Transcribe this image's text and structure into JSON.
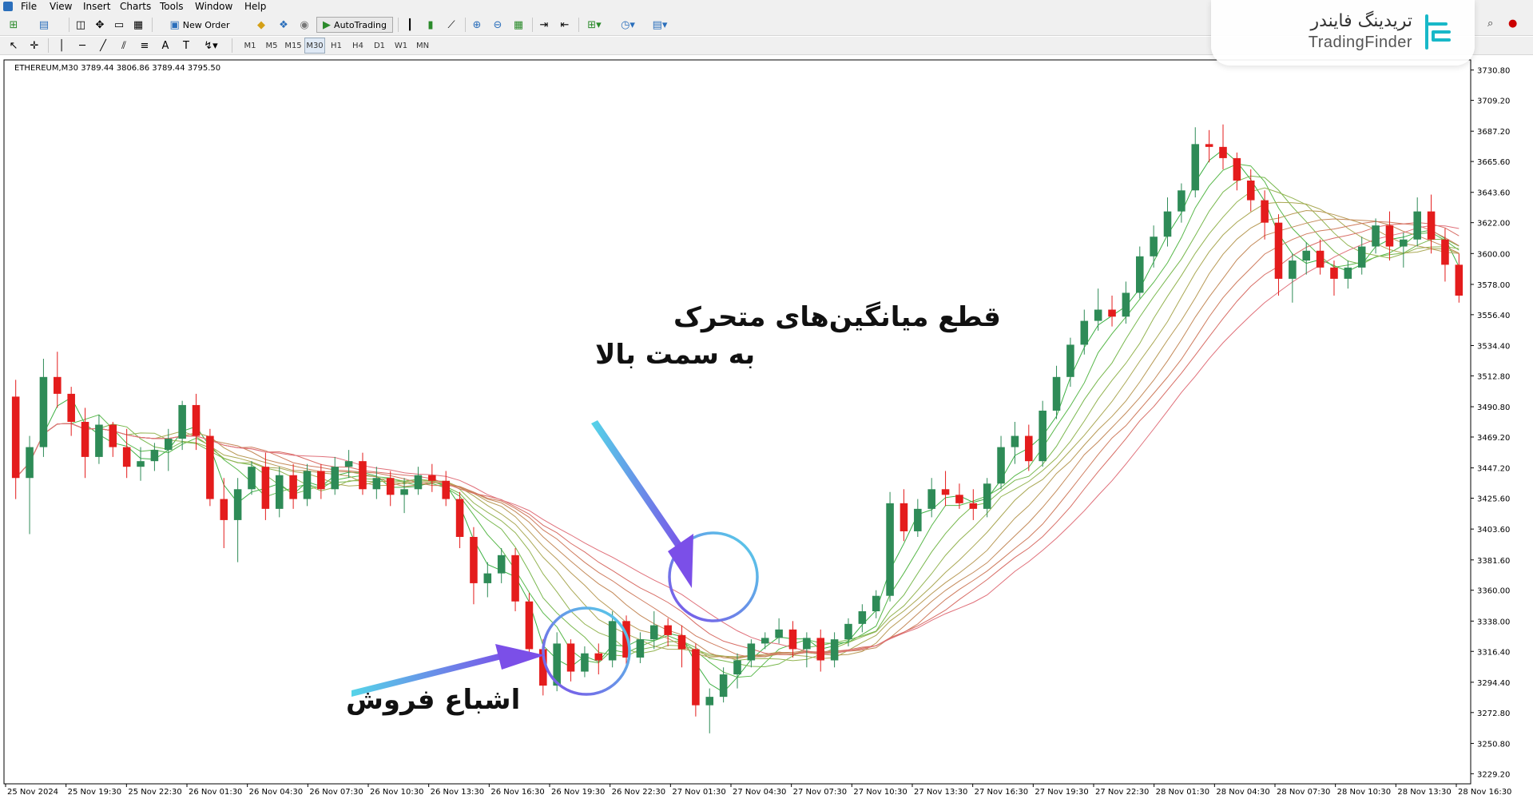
{
  "menu": {
    "items": [
      "File",
      "View",
      "Insert",
      "Charts",
      "Tools",
      "Window",
      "Help"
    ]
  },
  "toolbar": {
    "new_order_label": "New Order",
    "autotrading_label": "AutoTrading"
  },
  "timeframes": [
    "M1",
    "M5",
    "M15",
    "M30",
    "H1",
    "H4",
    "D1",
    "W1",
    "MN"
  ],
  "active_timeframe": "M30",
  "chart": {
    "symbol_info": "ETHEREUM,M30  3789.44 3806.86 3789.44 3795.50"
  },
  "brand": {
    "persian_name": "تریدینگ فایندر",
    "english_name": "TradingFinder",
    "accent_color": "#18b8c8"
  },
  "annotations": {
    "crossover_line1": "قطع میانگین‌های متحرک",
    "crossover_line2": "به سمت بالا",
    "oversold": "اشباع فروش"
  },
  "colors": {
    "bull": "#2e8b57",
    "bear": "#e41c1c",
    "circle_start": "#7b4fe8",
    "circle_end": "#55d4e8"
  },
  "chart_data": {
    "type": "candlestick",
    "title": "",
    "ylim": [
      3222,
      3738
    ],
    "y_ticks": [
      "3730.80",
      "3709.20",
      "3687.20",
      "3665.60",
      "3643.60",
      "3622.00",
      "3600.00",
      "3578.00",
      "3556.40",
      "3534.40",
      "3512.80",
      "3490.80",
      "3469.20",
      "3447.20",
      "3425.60",
      "3403.60",
      "3381.60",
      "3360.00",
      "3338.00",
      "3316.40",
      "3294.40",
      "3272.80",
      "3250.80",
      "3229.20"
    ],
    "x_ticks": [
      "25 Nov 2024",
      "25 Nov 19:30",
      "25 Nov 22:30",
      "26 Nov 01:30",
      "26 Nov 04:30",
      "26 Nov 07:30",
      "26 Nov 10:30",
      "26 Nov 13:30",
      "26 Nov 16:30",
      "26 Nov 19:30",
      "26 Nov 22:30",
      "27 Nov 01:30",
      "27 Nov 04:30",
      "27 Nov 07:30",
      "27 Nov 10:30",
      "27 Nov 13:30",
      "27 Nov 16:30",
      "27 Nov 19:30",
      "27 Nov 22:30",
      "28 Nov 01:30",
      "28 Nov 04:30",
      "28 Nov 07:30",
      "28 Nov 10:30",
      "28 Nov 13:30",
      "28 Nov 16:30"
    ],
    "ohlc": [
      [
        3498,
        3510,
        3425,
        3440
      ],
      [
        3440,
        3470,
        3400,
        3462
      ],
      [
        3462,
        3525,
        3455,
        3512
      ],
      [
        3512,
        3530,
        3490,
        3500
      ],
      [
        3500,
        3505,
        3470,
        3480
      ],
      [
        3480,
        3490,
        3440,
        3455
      ],
      [
        3455,
        3485,
        3450,
        3478
      ],
      [
        3478,
        3480,
        3455,
        3462
      ],
      [
        3462,
        3475,
        3440,
        3448
      ],
      [
        3448,
        3462,
        3438,
        3452
      ],
      [
        3452,
        3465,
        3445,
        3460
      ],
      [
        3460,
        3475,
        3445,
        3468
      ],
      [
        3468,
        3495,
        3460,
        3492
      ],
      [
        3492,
        3500,
        3460,
        3470
      ],
      [
        3470,
        3475,
        3420,
        3425
      ],
      [
        3425,
        3440,
        3390,
        3410
      ],
      [
        3410,
        3440,
        3380,
        3432
      ],
      [
        3432,
        3452,
        3428,
        3448
      ],
      [
        3448,
        3458,
        3410,
        3418
      ],
      [
        3418,
        3448,
        3412,
        3442
      ],
      [
        3442,
        3450,
        3418,
        3425
      ],
      [
        3425,
        3450,
        3420,
        3445
      ],
      [
        3445,
        3450,
        3425,
        3432
      ],
      [
        3432,
        3455,
        3428,
        3448
      ],
      [
        3448,
        3460,
        3440,
        3452
      ],
      [
        3452,
        3458,
        3428,
        3432
      ],
      [
        3432,
        3448,
        3425,
        3440
      ],
      [
        3440,
        3445,
        3420,
        3428
      ],
      [
        3428,
        3440,
        3415,
        3432
      ],
      [
        3432,
        3448,
        3428,
        3442
      ],
      [
        3442,
        3450,
        3430,
        3438
      ],
      [
        3438,
        3445,
        3420,
        3425
      ],
      [
        3425,
        3430,
        3390,
        3398
      ],
      [
        3398,
        3405,
        3350,
        3365
      ],
      [
        3365,
        3380,
        3355,
        3372
      ],
      [
        3372,
        3390,
        3365,
        3385
      ],
      [
        3385,
        3390,
        3345,
        3352
      ],
      [
        3352,
        3358,
        3310,
        3318
      ],
      [
        3318,
        3325,
        3285,
        3292
      ],
      [
        3292,
        3330,
        3288,
        3322
      ],
      [
        3322,
        3325,
        3295,
        3302
      ],
      [
        3302,
        3320,
        3298,
        3315
      ],
      [
        3315,
        3322,
        3300,
        3310
      ],
      [
        3310,
        3345,
        3305,
        3338
      ],
      [
        3338,
        3342,
        3305,
        3312
      ],
      [
        3312,
        3330,
        3308,
        3325
      ],
      [
        3325,
        3345,
        3318,
        3335
      ],
      [
        3335,
        3340,
        3320,
        3328
      ],
      [
        3328,
        3335,
        3305,
        3318
      ],
      [
        3318,
        3322,
        3270,
        3278
      ],
      [
        3278,
        3290,
        3258,
        3284
      ],
      [
        3284,
        3305,
        3280,
        3300
      ],
      [
        3300,
        3315,
        3290,
        3310
      ],
      [
        3310,
        3325,
        3305,
        3322
      ],
      [
        3322,
        3330,
        3318,
        3326
      ],
      [
        3326,
        3340,
        3322,
        3332
      ],
      [
        3332,
        3338,
        3312,
        3318
      ],
      [
        3318,
        3330,
        3305,
        3326
      ],
      [
        3326,
        3332,
        3302,
        3310
      ],
      [
        3310,
        3330,
        3305,
        3325
      ],
      [
        3325,
        3340,
        3320,
        3336
      ],
      [
        3336,
        3350,
        3330,
        3345
      ],
      [
        3345,
        3360,
        3340,
        3356
      ],
      [
        3356,
        3430,
        3352,
        3422
      ],
      [
        3422,
        3432,
        3395,
        3402
      ],
      [
        3402,
        3425,
        3398,
        3418
      ],
      [
        3418,
        3440,
        3412,
        3432
      ],
      [
        3432,
        3445,
        3420,
        3428
      ],
      [
        3428,
        3436,
        3418,
        3422
      ],
      [
        3422,
        3432,
        3410,
        3418
      ],
      [
        3418,
        3440,
        3412,
        3436
      ],
      [
        3436,
        3470,
        3432,
        3462
      ],
      [
        3462,
        3480,
        3450,
        3470
      ],
      [
        3470,
        3478,
        3445,
        3452
      ],
      [
        3452,
        3495,
        3448,
        3488
      ],
      [
        3488,
        3520,
        3482,
        3512
      ],
      [
        3512,
        3540,
        3505,
        3535
      ],
      [
        3535,
        3560,
        3528,
        3552
      ],
      [
        3552,
        3575,
        3545,
        3560
      ],
      [
        3560,
        3570,
        3548,
        3555
      ],
      [
        3555,
        3580,
        3550,
        3572
      ],
      [
        3572,
        3605,
        3568,
        3598
      ],
      [
        3598,
        3620,
        3590,
        3612
      ],
      [
        3612,
        3640,
        3605,
        3630
      ],
      [
        3630,
        3650,
        3622,
        3645
      ],
      [
        3645,
        3690,
        3640,
        3678
      ],
      [
        3678,
        3688,
        3665,
        3676
      ],
      [
        3676,
        3692,
        3660,
        3668
      ],
      [
        3668,
        3672,
        3645,
        3652
      ],
      [
        3652,
        3660,
        3630,
        3638
      ],
      [
        3638,
        3645,
        3610,
        3622
      ],
      [
        3622,
        3628,
        3570,
        3582
      ],
      [
        3582,
        3600,
        3565,
        3595
      ],
      [
        3595,
        3608,
        3585,
        3602
      ],
      [
        3602,
        3610,
        3585,
        3590
      ],
      [
        3590,
        3595,
        3570,
        3582
      ],
      [
        3582,
        3595,
        3575,
        3590
      ],
      [
        3590,
        3612,
        3585,
        3605
      ],
      [
        3605,
        3625,
        3600,
        3620
      ],
      [
        3620,
        3630,
        3595,
        3605
      ],
      [
        3605,
        3615,
        3590,
        3610
      ],
      [
        3610,
        3640,
        3605,
        3630
      ],
      [
        3630,
        3642,
        3600,
        3610
      ],
      [
        3610,
        3618,
        3580,
        3592
      ],
      [
        3592,
        3600,
        3565,
        3570
      ]
    ]
  }
}
